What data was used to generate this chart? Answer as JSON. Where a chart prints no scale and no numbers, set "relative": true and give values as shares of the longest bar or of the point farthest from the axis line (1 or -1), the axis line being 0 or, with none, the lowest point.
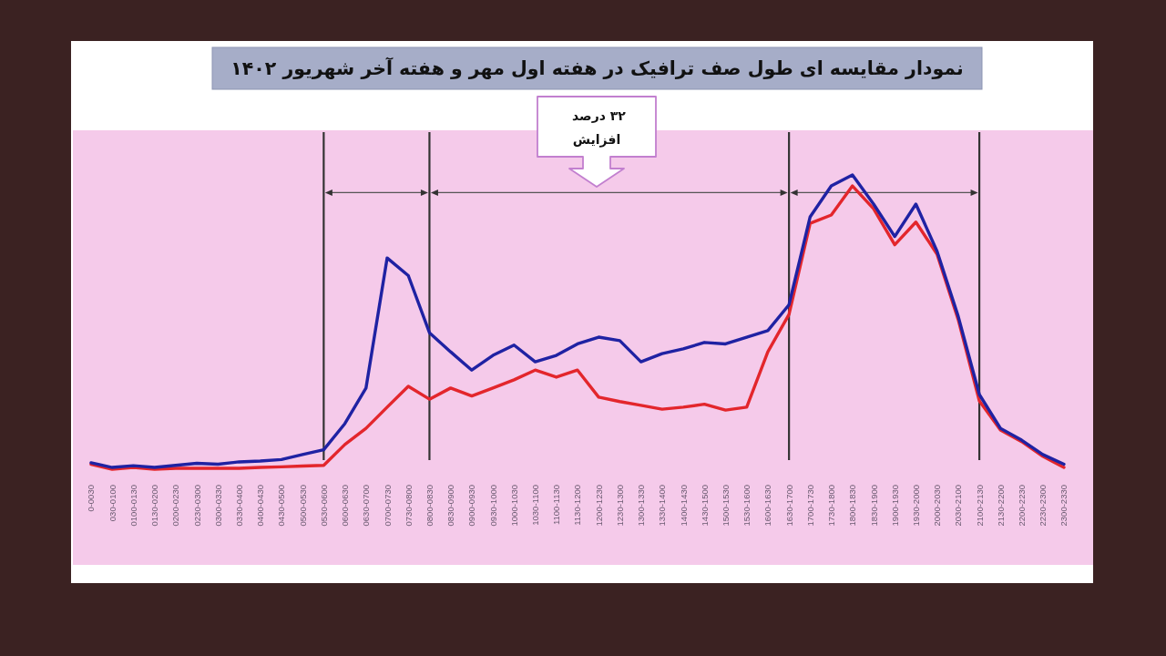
{
  "chart_data": {
    "type": "line",
    "title": "نمودار مقایسه ای طول صف ترافیک در هفته اول مهر و هفته آخر شهریور ۱۴۰۲",
    "relative": true,
    "categories": [
      "0-0030",
      "030-0100",
      "0100-0130",
      "0130-0200",
      "0200-0230",
      "0230-0300",
      "0300-0330",
      "0330-0400",
      "0400-0430",
      "0430-0500",
      "0500-0530",
      "0530-0600",
      "0600-0630",
      "0630-0700",
      "0700-0730",
      "0730-0800",
      "0800-0830",
      "0830-0900",
      "0900-0930",
      "0930-1000",
      "1000-1030",
      "1030-1100",
      "1100-1130",
      "1130-1200",
      "1200-1230",
      "1230-1300",
      "1300-1330",
      "1330-1400",
      "1400-1430",
      "1430-1500",
      "1500-1530",
      "1530-1600",
      "1600-1630",
      "1630-1700",
      "1700-1730",
      "1730-1800",
      "1800-1830",
      "1830-1900",
      "1900-1930",
      "1930-2000",
      "2000-2030",
      "2030-2100",
      "2100-2130",
      "2130-2200",
      "2200-2230",
      "2230-2300",
      "2300-2330"
    ],
    "series": [
      {
        "color": "#e3262c",
        "values": [
          0.017,
          0,
          0.006,
          0,
          0.003,
          0.003,
          0.003,
          0.003,
          0.006,
          0.008,
          0.011,
          0.013,
          0.084,
          0.139,
          0.211,
          0.282,
          0.238,
          0.276,
          0.249,
          0.276,
          0.304,
          0.337,
          0.313,
          0.337,
          0.245,
          0.23,
          0.217,
          0.204,
          0.211,
          0.221,
          0.201,
          0.211,
          0.399,
          0.526,
          0.836,
          0.864,
          0.963,
          0.885,
          0.763,
          0.84,
          0.731,
          0.509,
          0.232,
          0.133,
          0.094,
          0.044,
          0.006
        ]
      },
      {
        "color": "#1f22a3",
        "values": [
          0.022,
          0.006,
          0.012,
          0.006,
          0.013,
          0.02,
          0.017,
          0.025,
          0.028,
          0.033,
          0.05,
          0.066,
          0.155,
          0.276,
          0.718,
          0.658,
          0.464,
          0.399,
          0.337,
          0.387,
          0.422,
          0.365,
          0.387,
          0.426,
          0.449,
          0.437,
          0.365,
          0.393,
          0.409,
          0.431,
          0.426,
          0.449,
          0.471,
          0.559,
          0.858,
          0.963,
          1,
          0.901,
          0.791,
          0.901,
          0.741,
          0.52,
          0.254,
          0.139,
          0.099,
          0.05,
          0.017
        ]
      }
    ],
    "ref_lines": [
      {
        "axis": "x",
        "value": "0530-0600",
        "color": "#333333"
      },
      {
        "axis": "x",
        "value": "0800-0830",
        "color": "#333333"
      },
      {
        "axis": "x",
        "value": "1630-1700",
        "color": "#333333"
      },
      {
        "axis": "x",
        "value": "2100-2130",
        "color": "#333333"
      }
    ],
    "annotations": [
      "۳۲ درصد افزایش"
    ]
  }
}
